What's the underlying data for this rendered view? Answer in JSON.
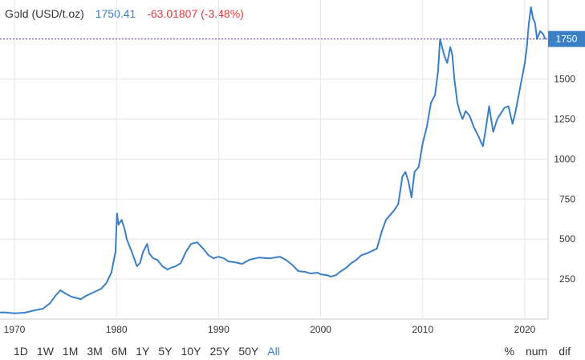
{
  "header": {
    "title": "Gold (USD/t.oz)",
    "price": "1750.41",
    "change": "-63.01807 (-3.48%)"
  },
  "current_price_label": "1750",
  "ranges": [
    "1D",
    "1W",
    "1M",
    "3M",
    "6M",
    "1Y",
    "5Y",
    "10Y",
    "25Y",
    "50Y",
    "All"
  ],
  "active_range": "All",
  "modes": [
    "%",
    "num",
    "dif"
  ],
  "colors": {
    "line": "#3b7fc4",
    "up": "#3b7fc4",
    "down": "#e0393e",
    "grid": "#e6e6e6",
    "current_line": "#5b2fa8"
  },
  "chart_data": {
    "type": "line",
    "title": "Gold (USD/t.oz)",
    "xlabel": "",
    "ylabel": "",
    "xlim": [
      1968,
      2022
    ],
    "ylim": [
      0,
      2000
    ],
    "x_ticks": [
      1970,
      1980,
      1990,
      2000,
      2010,
      2020
    ],
    "y_ticks": [
      250,
      500,
      750,
      1000,
      1250,
      1500,
      1750
    ],
    "current_value": 1750.41,
    "grid": true,
    "series": [
      {
        "name": "",
        "x": [
          1968.0,
          1969.0,
          1970.0,
          1971.0,
          1972.0,
          1972.8,
          1973.5,
          1974.0,
          1974.5,
          1975.0,
          1975.6,
          1976.5,
          1977.0,
          1977.5,
          1978.0,
          1978.5,
          1979.0,
          1979.5,
          1979.9,
          1980.05,
          1980.2,
          1980.5,
          1980.8,
          1981.0,
          1981.5,
          1982.0,
          1982.3,
          1982.6,
          1983.0,
          1983.2,
          1983.6,
          1984.0,
          1984.5,
          1985.0,
          1985.3,
          1985.8,
          1986.3,
          1986.8,
          1987.3,
          1987.9,
          1988.5,
          1989.0,
          1989.5,
          1990.0,
          1990.5,
          1991.0,
          1991.6,
          1992.3,
          1993.0,
          1993.6,
          1994.0,
          1995.0,
          1996.0,
          1996.6,
          1997.2,
          1997.8,
          1998.5,
          1999.0,
          1999.7,
          2000.0,
          2000.6,
          2001.0,
          2001.5,
          2002.0,
          2002.5,
          2003.0,
          2003.5,
          2004.0,
          2004.5,
          2005.0,
          2005.5,
          2006.0,
          2006.4,
          2006.8,
          2007.2,
          2007.6,
          2008.0,
          2008.3,
          2008.6,
          2008.9,
          2009.2,
          2009.6,
          2010.0,
          2010.4,
          2010.8,
          2011.2,
          2011.5,
          2011.7,
          2011.9,
          2012.1,
          2012.4,
          2012.7,
          2012.9,
          2013.1,
          2013.4,
          2013.6,
          2013.9,
          2014.2,
          2014.6,
          2015.0,
          2015.4,
          2015.9,
          2016.2,
          2016.5,
          2016.9,
          2017.3,
          2017.7,
          2018.0,
          2018.4,
          2018.8,
          2019.1,
          2019.4,
          2019.7,
          2020.0,
          2020.2,
          2020.4,
          2020.6,
          2020.8,
          2021.0,
          2021.2,
          2021.5,
          2021.8,
          2022.0
        ],
        "values": [
          40,
          42,
          36,
          40,
          55,
          65,
          100,
          145,
          180,
          160,
          140,
          125,
          145,
          160,
          175,
          190,
          225,
          290,
          420,
          660,
          590,
          620,
          560,
          500,
          420,
          330,
          350,
          420,
          470,
          410,
          380,
          370,
          330,
          310,
          320,
          330,
          350,
          420,
          470,
          480,
          440,
          400,
          380,
          390,
          380,
          360,
          355,
          345,
          370,
          380,
          385,
          380,
          390,
          370,
          340,
          300,
          295,
          285,
          290,
          280,
          275,
          265,
          275,
          300,
          320,
          350,
          370,
          400,
          410,
          425,
          440,
          550,
          620,
          650,
          680,
          720,
          890,
          920,
          860,
          760,
          920,
          950,
          1100,
          1200,
          1350,
          1400,
          1550,
          1750,
          1700,
          1650,
          1600,
          1700,
          1650,
          1500,
          1350,
          1300,
          1250,
          1300,
          1270,
          1200,
          1150,
          1080,
          1200,
          1330,
          1170,
          1250,
          1290,
          1320,
          1330,
          1220,
          1300,
          1400,
          1500,
          1600,
          1700,
          1850,
          1950,
          1880,
          1850,
          1750,
          1800,
          1780,
          1750.41
        ]
      }
    ]
  }
}
